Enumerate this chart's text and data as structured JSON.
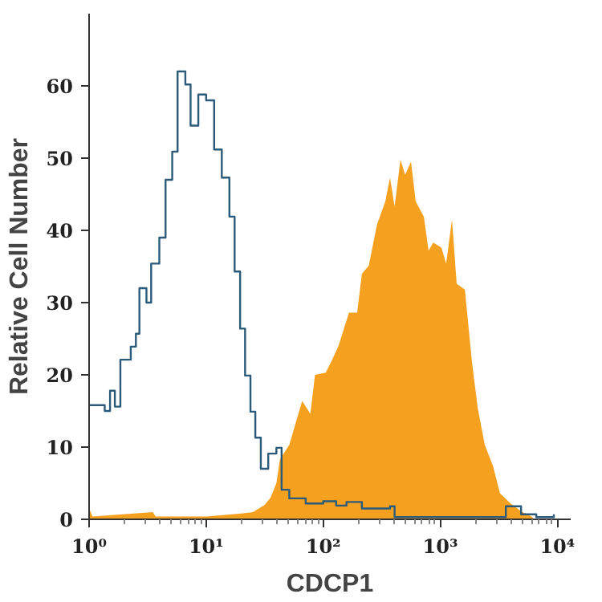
{
  "chart_data": {
    "type": "area",
    "xlabel": "CDCP1",
    "ylabel": "Relative Cell Number",
    "log": "x",
    "xlim": [
      1,
      13000
    ],
    "ylim": [
      0,
      70
    ],
    "xticks": [
      {
        "value": 1,
        "label": "10⁰"
      },
      {
        "value": 10,
        "label": "10¹"
      },
      {
        "value": 100,
        "label": "10²"
      },
      {
        "value": 1000,
        "label": "10³"
      },
      {
        "value": 10000,
        "label": "10⁴"
      }
    ],
    "yticks": [
      0,
      10,
      20,
      30,
      40,
      50,
      60
    ],
    "grid": false,
    "series": [
      {
        "color": "#f5a01f",
        "x": [
          1,
          1.07,
          3.5,
          3.7,
          10,
          20,
          25.1,
          31.6,
          35.5,
          39.8,
          42.7,
          51.3,
          66.1,
          77.6,
          85.1,
          105,
          117,
          135,
          166,
          195,
          214,
          245,
          288,
          339,
          372,
          407,
          457,
          501,
          562,
          617,
          724,
          794,
          871,
          1023,
          1122,
          1259,
          1380,
          1622,
          1862,
          2089,
          2399,
          2818,
          3236,
          3981,
          4898,
          6026,
          6310
        ],
        "values": [
          1.5,
          0.4,
          1.0,
          0.4,
          0.4,
          0.8,
          1.0,
          2.0,
          3.0,
          5.0,
          8.3,
          10.3,
          16.4,
          14.6,
          20,
          20.3,
          21.8,
          24,
          28.6,
          28.6,
          34,
          35.1,
          40.8,
          44,
          47.3,
          43.3,
          49.8,
          47.7,
          49.5,
          44,
          41.9,
          37.2,
          38.3,
          37.6,
          35.4,
          41.5,
          32.6,
          31.8,
          21.9,
          15.4,
          10.3,
          7.4,
          3.6,
          2.2,
          1.1,
          0.4,
          0
        ]
      },
      {
        "type": "step",
        "color": "#2b5a7a",
        "x": [
          1,
          1.36,
          1.51,
          1.66,
          1.85,
          2.27,
          2.51,
          2.69,
          3.09,
          3.39,
          3.98,
          4.5,
          5.13,
          5.7,
          6.64,
          7.36,
          8.57,
          10,
          11.7,
          13.6,
          15.8,
          17.5,
          19.5,
          21.5,
          23.9,
          26.3,
          29.3,
          33.9,
          39.8,
          44.1,
          51.3,
          70.8,
          100,
          129,
          158,
          214,
          372,
          407,
          3236,
          3631,
          4898,
          6607,
          9333
        ],
        "values": [
          15.8,
          15.0,
          17.8,
          15.6,
          22.1,
          23.9,
          25.7,
          32,
          30,
          35.4,
          39,
          47,
          50.9,
          62,
          60.2,
          54.5,
          58.8,
          58,
          51.2,
          47.3,
          41.9,
          34.3,
          26.4,
          19.9,
          14.9,
          11.3,
          7,
          9.1,
          9.9,
          4.1,
          2.9,
          2.2,
          2.5,
          1.9,
          2.4,
          1.5,
          1.8,
          0.3,
          0.3,
          1.8,
          0.7,
          0.3,
          0.7
        ]
      }
    ]
  }
}
